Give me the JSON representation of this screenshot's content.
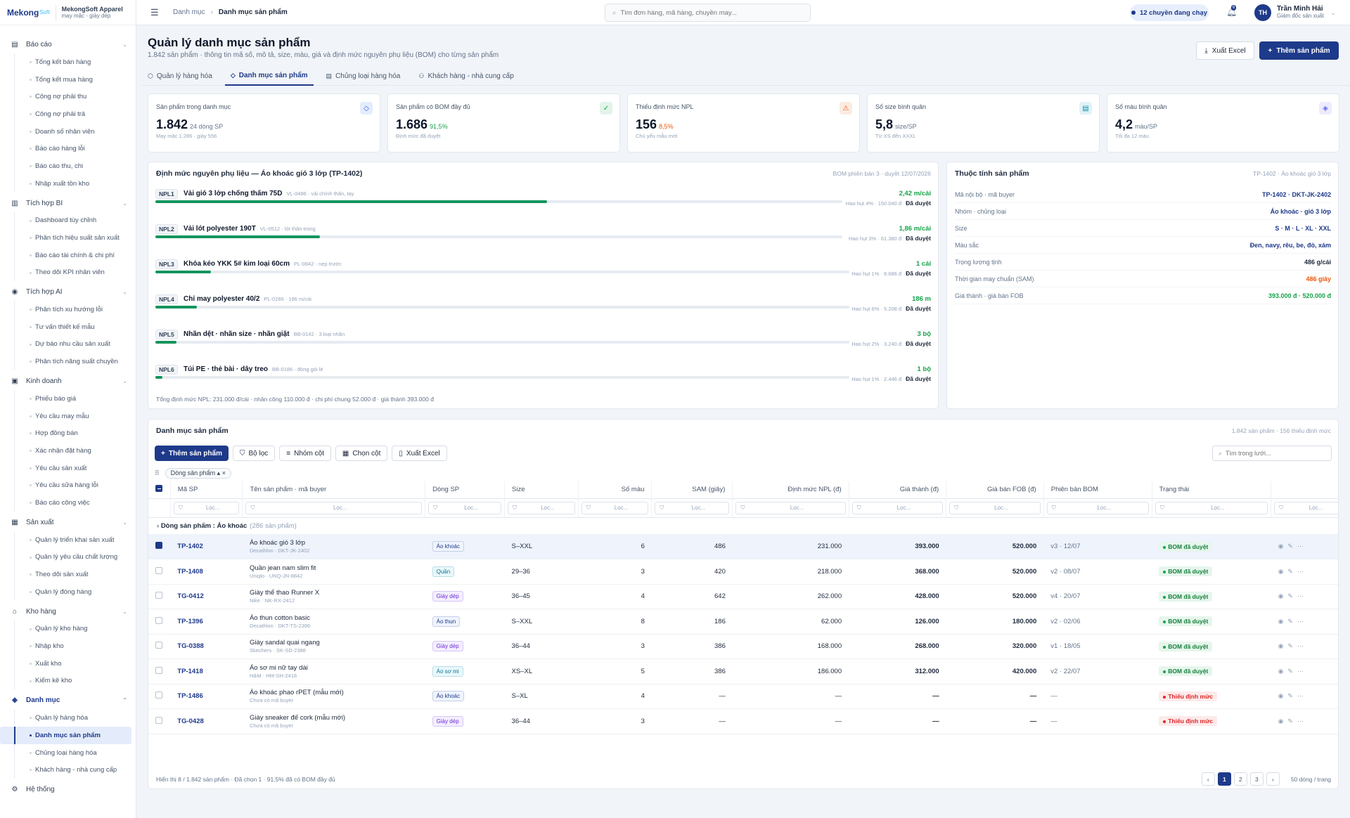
{
  "brand": {
    "logo_main": "Mekong",
    "logo_sub": "Soft",
    "company": "MekongSoft Apparel",
    "tagline": "may mặc - giày dép"
  },
  "topbar": {
    "breadcrumb": [
      "Danh mục",
      "Danh mục sản phẩm"
    ],
    "search_placeholder": "Tìm đơn hàng, mã hàng, chuyền may...",
    "lines_running": "12 chuyền đang chạy",
    "notif_count": "6",
    "user": {
      "initials": "TH",
      "name": "Trần Minh Hải",
      "role": "Giám đốc sản xuất"
    }
  },
  "sidebar": {
    "groups": [
      {
        "label": "Báo cáo",
        "icon": "report-icon",
        "items": [
          "Tổng kết bán hàng",
          "Tổng kết mua hàng",
          "Công nợ phải thu",
          "Công nợ phải trả",
          "Doanh số nhân viên",
          "Báo cáo hàng lỗi",
          "Báo cáo thu, chi",
          "Nhập xuất tồn kho"
        ]
      },
      {
        "label": "Tích hợp BI",
        "icon": "chart-icon",
        "items": [
          "Dashboard tùy chỉnh",
          "Phân tích hiệu suất sản xuất",
          "Báo cáo tài chính & chi phí",
          "Theo dõi KPI nhân viên"
        ]
      },
      {
        "label": "Tích hợp AI",
        "icon": "ai-icon",
        "items": [
          "Phân tích xu hướng lỗi",
          "Tư vấn thiết kế mẫu",
          "Dự báo nhu cầu sản xuất",
          "Phân tích năng suất chuyền"
        ]
      },
      {
        "label": "Kinh doanh",
        "icon": "money-icon",
        "items": [
          "Phiếu báo giá",
          "Yêu cầu may mẫu",
          "Hợp đồng bán",
          "Xác nhận đặt hàng",
          "Yêu cầu sản xuất",
          "Yêu cầu sửa hàng lỗi",
          "Báo cáo công việc"
        ]
      },
      {
        "label": "Sản xuất",
        "icon": "factory-icon",
        "items": [
          "Quản lý triển khai sản xuất",
          "Quản lý yêu cầu chất lượng",
          "Theo dõi sản xuất",
          "Quản lý đóng hàng"
        ]
      },
      {
        "label": "Kho hàng",
        "icon": "warehouse-icon",
        "items": [
          "Quản lý kho hàng",
          "Nhập kho",
          "Xuất kho",
          "Kiểm kê kho"
        ]
      },
      {
        "label": "Danh mục",
        "icon": "catalog-icon",
        "active": true,
        "items": [
          "Quản lý hàng hóa",
          "Danh mục sản phẩm",
          "Chủng loại hàng hóa",
          "Khách hàng - nhà cung cấp"
        ]
      }
    ],
    "system": "Hệ thống"
  },
  "page": {
    "title": "Quản lý danh mục sản phẩm",
    "subtitle": "1.842 sản phẩm · thông tin mã số, mô tả, size, màu, giá và định mức nguyên phụ liệu (BOM) cho từng sản phẩm",
    "export_label": "Xuất Excel",
    "add_label": "Thêm sản phẩm",
    "tabs": [
      "Quản lý hàng hóa",
      "Danh mục sản phẩm",
      "Chủng loại hàng hóa",
      "Khách hàng - nhà cung cấp"
    ]
  },
  "kpis": [
    {
      "label": "Sản phẩm trong danh mục",
      "value": "1.842",
      "extra": "24 dòng SP",
      "hint": "May mặc 1.286 · giày 556",
      "color": "#2563eb"
    },
    {
      "label": "Sản phẩm có BOM đầy đủ",
      "value": "1.686",
      "extra": "91,5%",
      "hint": "Định mức đã duyệt",
      "color": "#16a34a"
    },
    {
      "label": "Thiếu định mức NPL",
      "value": "156",
      "extra": "8,5%",
      "hint": "Chủ yếu mẫu mới",
      "color": "#ea580c"
    },
    {
      "label": "Số size bình quân",
      "value": "5,8",
      "extra": "size/SP",
      "hint": "Từ XS đến XXXL",
      "color": "#0891b2"
    },
    {
      "label": "Số màu bình quân",
      "value": "4,2",
      "extra": "màu/SP",
      "hint": "Tối đa 12 màu",
      "color": "#6366f1"
    }
  ],
  "bom": {
    "title": "Định mức nguyên phụ liệu — Áo khoác gió 3 lớp (TP-1402)",
    "meta": "BOM phiên bản 3 · duyệt 12/07/2026",
    "items": [
      {
        "code": "NPL1",
        "name": "Vải gió 3 lớp chống thấm 75D",
        "desc": "VL-0486 · vải chính thân, tay",
        "qty": "2,42 m/cái",
        "note": "Hao hụt 4% · 150.040 đ",
        "status": "Đã duyệt",
        "share": 0.57
      },
      {
        "code": "NPL2",
        "name": "Vải lót polyester 190T",
        "desc": "VL-0512 · lót thân trong",
        "qty": "1,86 m/cái",
        "note": "Hao hụt 3% · 61.380 đ",
        "status": "Đã duyệt",
        "share": 0.24
      },
      {
        "code": "NPL3",
        "name": "Khóa kéo YKK 5# kim loại 60cm",
        "desc": "PL-0842 · nẹp trước",
        "qty": "1 cái",
        "note": "Hao hụt 1% · 8.686 đ",
        "status": "Đã duyệt",
        "share": 0.08
      },
      {
        "code": "NPL4",
        "name": "Chỉ may polyester 40/2",
        "desc": "PL-0286 · 186 m/cái",
        "qty": "186 m",
        "note": "Hao hụt 6% · 5.208 đ",
        "status": "Đã duyệt",
        "share": 0.06
      },
      {
        "code": "NPL5",
        "name": "Nhãn dệt · nhãn size · nhãn giặt",
        "desc": "BB-0142 · 3 loại nhãn",
        "qty": "3 bộ",
        "note": "Hao hụt 2% · 3.240 đ",
        "status": "Đã duyệt",
        "share": 0.03
      },
      {
        "code": "NPL6",
        "name": "Túi PE · thẻ bài · dây treo",
        "desc": "BB-0186 · đóng gói lẻ",
        "qty": "1 bộ",
        "note": "Hao hụt 1% · 2.446 đ",
        "status": "Đã duyệt",
        "share": 0.01
      }
    ],
    "footer": "Tổng định mức NPL: 231.000 đ/cái · nhân công 110.000 đ · chi phí chung 52.000 đ · giá thành 393.000 đ"
  },
  "attrs": {
    "title": "Thuộc tính sản phẩm",
    "meta": "TP-1402 · Áo khoác gió 3 lớp",
    "rows": [
      {
        "label": "Mã nội bộ · mã buyer",
        "value": "TP-1402 · DKT-JK-2402",
        "tone": "blue"
      },
      {
        "label": "Nhóm · chủng loại",
        "value": "Áo khoác · gió 3 lớp",
        "tone": "blue"
      },
      {
        "label": "Size",
        "value": "S · M · L · XL · XXL",
        "tone": "blue"
      },
      {
        "label": "Màu sắc",
        "value": "Đen, navy, rêu, be, đỏ, xám",
        "tone": "blue"
      },
      {
        "label": "Trọng lượng tịnh",
        "value": "486 g/cái",
        "tone": "dark"
      },
      {
        "label": "Thời gian may chuẩn (SAM)",
        "value": "486 giây",
        "tone": "orange"
      },
      {
        "label": "Giá thành · giá bán FOB",
        "value": "393.000 đ · 520.000 đ",
        "tone": "green"
      }
    ]
  },
  "grid": {
    "title": "Danh mục sản phẩm",
    "meta": "1.842 sản phẩm · 156 thiếu định mức",
    "toolbar": [
      "Thêm sản phẩm",
      "Bộ lọc",
      "Nhóm cột",
      "Chọn cột",
      "Xuất Excel"
    ],
    "search_placeholder": "Tìm trong lưới...",
    "group_chip": "Dòng sản phẩm",
    "filter_placeholder": "Lọc...",
    "columns": [
      "Mã SP",
      "Tên sản phẩm · mã buyer",
      "Dòng SP",
      "Size",
      "Số màu",
      "SAM (giây)",
      "Định mức NPL (đ)",
      "Giá thành (đ)",
      "Giá bán FOB (đ)",
      "Phiên bản BOM",
      "Trạng thái"
    ],
    "group_row": {
      "label": "Dòng sản phẩm",
      "value": "Áo khoác",
      "count": "(286 sản phẩm)"
    },
    "rows": [
      {
        "code": "TP-1402",
        "name": "Áo khoác gió 3 lớp",
        "buyer": "Decathlon · DKT-JK-2402",
        "line": "Áo khoác",
        "size": "S–XXL",
        "colors": "6",
        "sam": "486",
        "npl": "231.000",
        "cost": "393.000",
        "fob": "520.000",
        "bom": "v3 · 12/07",
        "status": "BOM đã duyệt",
        "ok": true,
        "selected": true
      },
      {
        "code": "TP-1408",
        "name": "Quần jean nam slim fit",
        "buyer": "Uniqlo · UNQ-JN-8842",
        "line": "Quần",
        "size": "29–36",
        "colors": "3",
        "sam": "420",
        "npl": "218.000",
        "cost": "368.000",
        "fob": "520.000",
        "bom": "v2 · 08/07",
        "status": "BOM đã duyệt",
        "ok": true
      },
      {
        "code": "TG-0412",
        "name": "Giày thể thao Runner X",
        "buyer": "Nike · NK-RX-2412",
        "line": "Giày dép",
        "size": "36–45",
        "colors": "4",
        "sam": "642",
        "npl": "262.000",
        "cost": "428.000",
        "fob": "520.000",
        "bom": "v4 · 20/07",
        "status": "BOM đã duyệt",
        "ok": true
      },
      {
        "code": "TP-1396",
        "name": "Áo thun cotton basic",
        "buyer": "Decathlon · DKT-TS-2396",
        "line": "Áo thun",
        "size": "S–XXL",
        "colors": "8",
        "sam": "186",
        "npl": "62.000",
        "cost": "126.000",
        "fob": "180.000",
        "bom": "v2 · 02/06",
        "status": "BOM đã duyệt",
        "ok": true
      },
      {
        "code": "TG-0388",
        "name": "Giày sandal quai ngang",
        "buyer": "Skechers · SK-SD-2388",
        "line": "Giày dép",
        "size": "36–44",
        "colors": "3",
        "sam": "386",
        "npl": "168.000",
        "cost": "268.000",
        "fob": "320.000",
        "bom": "v1 · 18/05",
        "status": "BOM đã duyệt",
        "ok": true
      },
      {
        "code": "TP-1418",
        "name": "Áo sơ mi nữ tay dài",
        "buyer": "H&M · HM-SH-2418",
        "line": "Áo sơ mi",
        "size": "XS–XL",
        "colors": "5",
        "sam": "386",
        "npl": "186.000",
        "cost": "312.000",
        "fob": "420.000",
        "bom": "v2 · 22/07",
        "status": "BOM đã duyệt",
        "ok": true
      },
      {
        "code": "TP-1486",
        "name": "Áo khoác phao rPET (mẫu mới)",
        "buyer": "Chưa có mã buyer",
        "line": "Áo khoác",
        "size": "S–XL",
        "colors": "4",
        "sam": "—",
        "npl": "—",
        "cost": "—",
        "fob": "—",
        "bom": "—",
        "status": "Thiếu định mức",
        "ok": false
      },
      {
        "code": "TG-0428",
        "name": "Giày sneaker đế cork (mẫu mới)",
        "buyer": "Chưa có mã buyer",
        "line": "Giày dép",
        "size": "36–44",
        "colors": "3",
        "sam": "—",
        "npl": "—",
        "cost": "—",
        "fob": "—",
        "bom": "—",
        "status": "Thiếu định mức",
        "ok": false
      }
    ],
    "tag_colors": {
      "Áo khoác": [
        "#eff4fe",
        "#1e3a8a"
      ],
      "Quần": [
        "#e9f8fc",
        "#0e7490"
      ],
      "Giày dép": [
        "#f2efff",
        "#6d28d9"
      ],
      "Áo thun": [
        "#eff4fe",
        "#1e3a8a"
      ],
      "Áo sơ mi": [
        "#e9f8fc",
        "#0e7490"
      ]
    },
    "footer": "Hiển thị 8 / 1.842 sản phẩm · Đã chọn 1 · 91,5% đã có BOM đầy đủ",
    "pages": [
      "‹",
      "1",
      "2",
      "3",
      "›"
    ],
    "per_page": "50 dòng / trang"
  }
}
